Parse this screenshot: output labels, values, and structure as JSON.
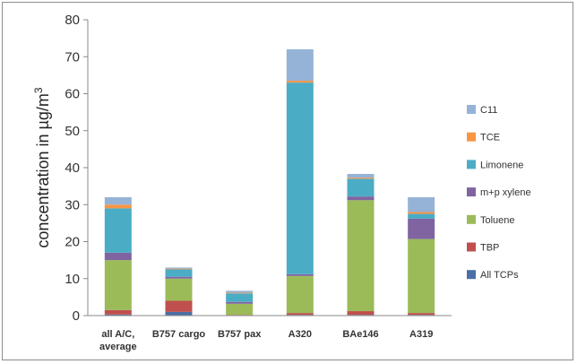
{
  "chart_data": {
    "type": "bar",
    "stacked": true,
    "title": "",
    "xlabel": "",
    "ylabel": "concentration in µg/m³",
    "ylabel_base": "concentration in µg/m",
    "ylabel_sup": "3",
    "ylim": [
      0,
      80
    ],
    "yticks": [
      0,
      10,
      20,
      30,
      40,
      50,
      60,
      70,
      80
    ],
    "grid": false,
    "legend_position": "right",
    "categories": [
      [
        "all A/C,",
        "average"
      ],
      [
        "B757 cargo"
      ],
      [
        "B757 pax"
      ],
      [
        "A320"
      ],
      [
        "BAe146"
      ],
      [
        "A319"
      ]
    ],
    "series": [
      {
        "name": "All TCPs",
        "color": "#4a6fa5",
        "values": [
          0.3,
          1.0,
          0.1,
          0.2,
          0.2,
          0.2
        ]
      },
      {
        "name": "TBP",
        "color": "#c0504d",
        "values": [
          1.2,
          3.0,
          0.1,
          0.5,
          1.0,
          0.5
        ]
      },
      {
        "name": "Toluene",
        "color": "#9bbb59",
        "values": [
          13.5,
          6.0,
          3.0,
          10.0,
          30.0,
          20.0
        ]
      },
      {
        "name": "m+p xylene",
        "color": "#8064a2",
        "values": [
          2.0,
          0.5,
          0.5,
          0.5,
          1.0,
          5.5
        ]
      },
      {
        "name": "Limonene",
        "color": "#4bacc6",
        "values": [
          12.0,
          2.0,
          2.3,
          51.8,
          4.8,
          1.3
        ]
      },
      {
        "name": "TCE",
        "color": "#f79646",
        "values": [
          1.0,
          0.2,
          0.2,
          0.5,
          0.3,
          0.5
        ]
      },
      {
        "name": "C11",
        "color": "#95b3d7",
        "values": [
          2.0,
          0.3,
          0.5,
          8.5,
          1.0,
          4.0
        ]
      }
    ]
  }
}
